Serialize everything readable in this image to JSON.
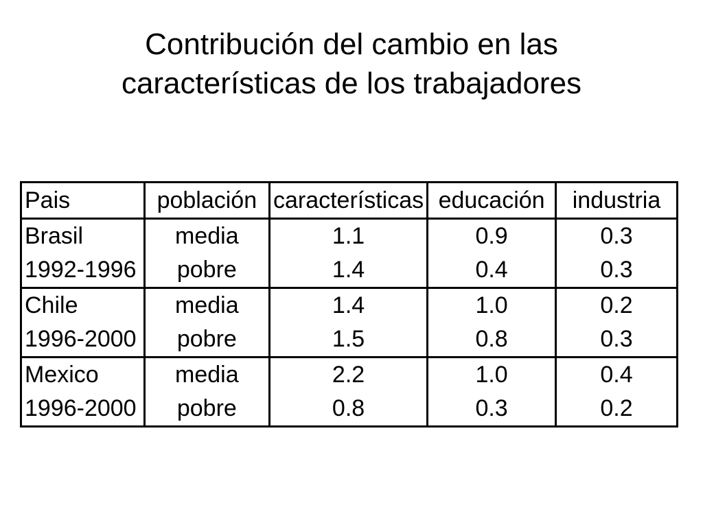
{
  "title": {
    "line1": "Contribución del cambio en las",
    "line2": "características de los trabajadores"
  },
  "table": {
    "headers": [
      "Pais",
      "población",
      "características",
      "educación",
      "industria"
    ],
    "rows": [
      {
        "country": "Brasil",
        "period": "1992-1996",
        "population": [
          "media",
          "pobre"
        ],
        "characteristics": [
          "1.1",
          "1.4"
        ],
        "education": [
          "0.9",
          "0.4"
        ],
        "industry": [
          "0.3",
          "0.3"
        ]
      },
      {
        "country": "Chile",
        "period": "1996-2000",
        "population": [
          "media",
          "pobre"
        ],
        "characteristics": [
          "1.4",
          "1.5"
        ],
        "education": [
          "1.0",
          "0.8"
        ],
        "industry": [
          "0.2",
          "0.3"
        ]
      },
      {
        "country": "Mexico",
        "period": "1996-2000",
        "population": [
          "media",
          "pobre"
        ],
        "characteristics": [
          "2.2",
          "0.8"
        ],
        "education": [
          "1.0",
          "0.3"
        ],
        "industry": [
          "0.4",
          "0.2"
        ]
      }
    ]
  }
}
